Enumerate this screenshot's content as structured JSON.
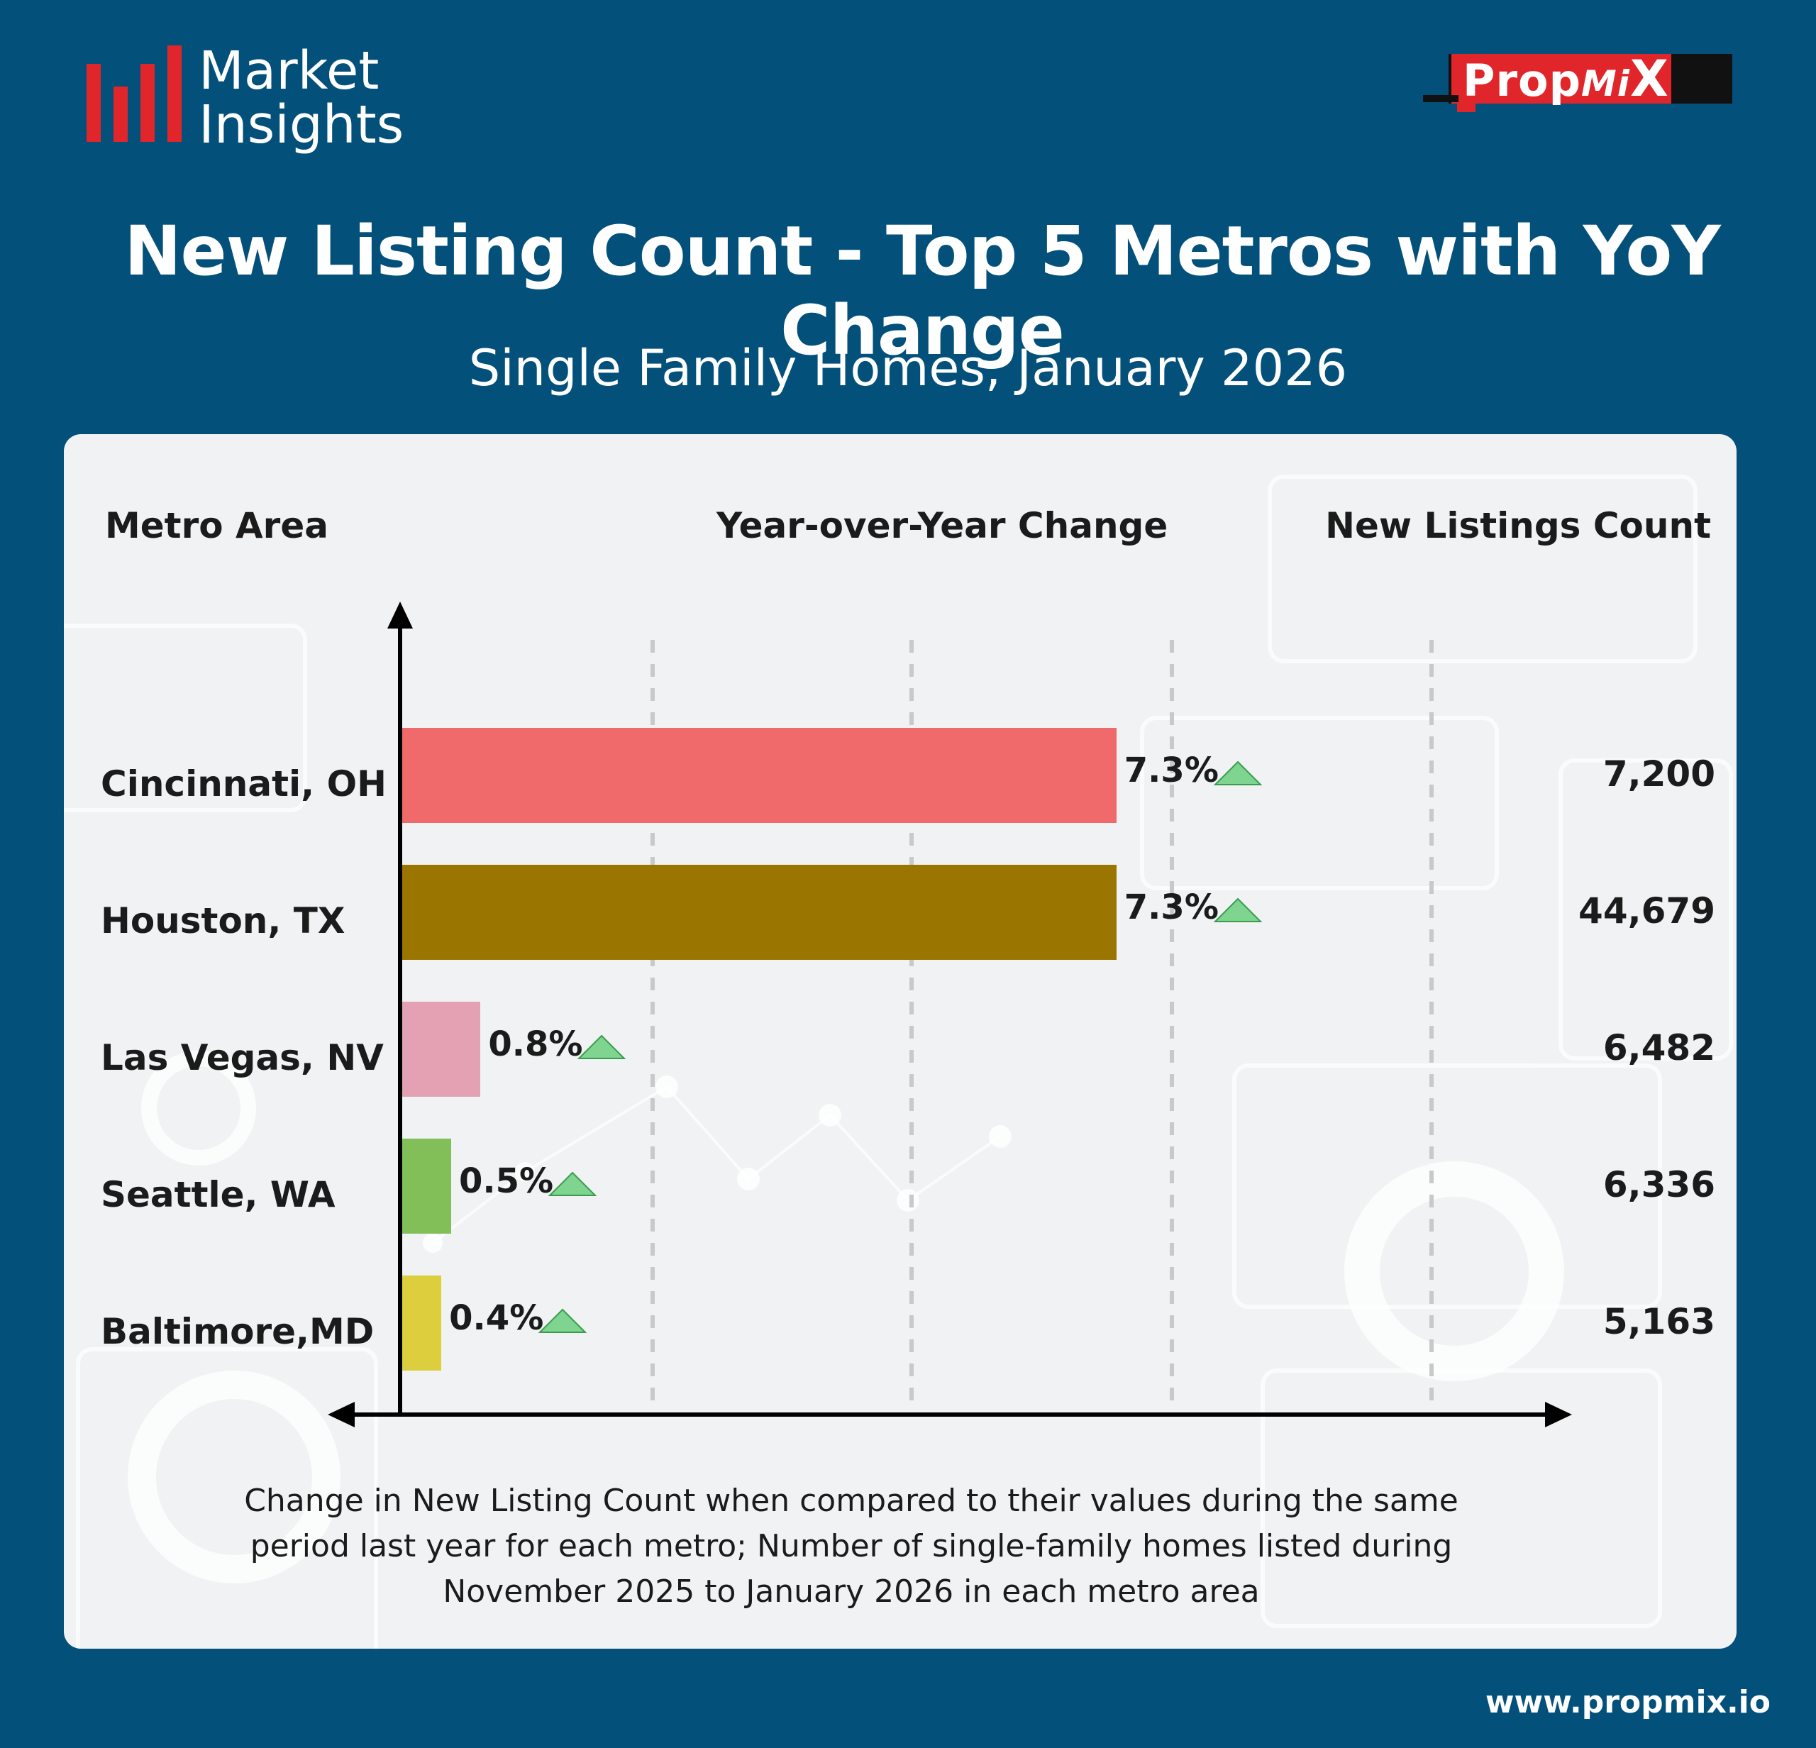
{
  "brand": {
    "line1": "Market",
    "line2": "Insights"
  },
  "propmix_logo": {
    "prop": "Prop",
    "mi": "Mi",
    "x": "X"
  },
  "title": "New Listing Count - Top 5 Metros with YoY Change",
  "subtitle": "Single Family Homes, January 2026",
  "columns": {
    "metro": "Metro Area",
    "yoy": "Year-over-Year Change",
    "count": "New Listings Count"
  },
  "caption": "Change in New Listing Count when compared to their values during the same period last year for each metro; Number of single-family homes listed during November 2025 to January 2026 in each metro area",
  "url": "www.propmix.io",
  "colors": {
    "background": "#03507a",
    "up_triangle": "#7fd58f"
  },
  "chart_data": {
    "type": "bar",
    "orientation": "horizontal",
    "categories": [
      "Cincinnati, OH",
      "Houston, TX",
      "Las Vegas, NV",
      "Seattle, WA",
      "Baltimore,MD"
    ],
    "values": [
      7.3,
      7.3,
      0.8,
      0.5,
      0.4
    ],
    "value_labels": [
      "7.3%",
      "7.3%",
      "0.8%",
      "0.5%",
      "0.4%"
    ],
    "trend": [
      "up",
      "up",
      "up",
      "up",
      "up"
    ],
    "bar_colors": [
      "#f06a6b",
      "#9a7600",
      "#e4a1b4",
      "#82bf58",
      "#dcce3c"
    ],
    "counts": [
      "7,200",
      "44,679",
      "6,482",
      "6,336",
      "5,163"
    ],
    "xlim": [
      0,
      9.6
    ],
    "grid": "vertical dashed"
  }
}
